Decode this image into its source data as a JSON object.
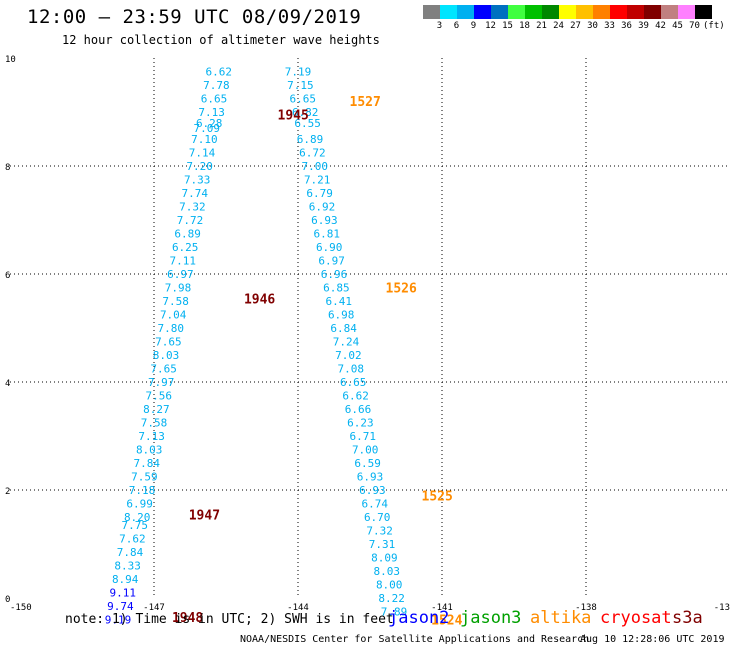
{
  "header": {
    "title": "12:00 – 23:59 UTC 08/09/2019",
    "subtitle": "12 hour collection of altimeter wave heights"
  },
  "legend": {
    "unit": "(ft)",
    "labels": [
      "3",
      "6",
      "9",
      "12",
      "15",
      "18",
      "21",
      "24",
      "27",
      "30",
      "33",
      "36",
      "39",
      "42",
      "45",
      "70"
    ],
    "colors": [
      "#808080",
      "#00e5ff",
      "#00b0f0",
      "#0000ff",
      "#0070c0",
      "#40ff40",
      "#00c000",
      "#008800",
      "#ffff00",
      "#ffc000",
      "#ff8000",
      "#ff0000",
      "#c00000",
      "#800000",
      "#c08080",
      "#ff80ff",
      "#000000"
    ]
  },
  "axes": {
    "x_ticks": [
      "-150",
      "-147",
      "-144",
      "-141",
      "-138",
      "-13"
    ],
    "y_ticks": [
      "10",
      "8",
      "6",
      "4",
      "2",
      "0"
    ]
  },
  "chart_data": {
    "type": "scatter",
    "xlim": [
      -150,
      -135
    ],
    "ylim": [
      0,
      10
    ],
    "grid": true,
    "tracks": [
      {
        "track": "A",
        "points": [
          {
            "x": -145.65,
            "y": 9.75,
            "v": "6.62",
            "color": "#00b0f0"
          },
          {
            "x": -145.7,
            "y": 9.5,
            "v": "7.78",
            "color": "#00b0f0"
          },
          {
            "x": -145.75,
            "y": 9.25,
            "v": "6.65",
            "color": "#00b0f0"
          },
          {
            "x": -145.8,
            "y": 9.0,
            "v": "7.13",
            "color": "#00b0f0"
          },
          {
            "x": -145.85,
            "y": 8.8,
            "v": "6.28",
            "color": "#00b0f0"
          },
          {
            "x": -145.9,
            "y": 8.7,
            "v": "7.09",
            "color": "#00b0f0"
          },
          {
            "x": -145.95,
            "y": 8.5,
            "v": "7.10",
            "color": "#00b0f0"
          },
          {
            "x": -146.0,
            "y": 8.25,
            "v": "7.14",
            "color": "#00b0f0"
          },
          {
            "x": -146.05,
            "y": 8.0,
            "v": "7.20",
            "color": "#00b0f0"
          },
          {
            "x": -146.1,
            "y": 7.75,
            "v": "7.33",
            "color": "#00b0f0"
          },
          {
            "x": -146.15,
            "y": 7.5,
            "v": "7.74",
            "color": "#00b0f0"
          },
          {
            "x": -146.2,
            "y": 7.25,
            "v": "7.32",
            "color": "#00b0f0"
          },
          {
            "x": -146.25,
            "y": 7.0,
            "v": "7.72",
            "color": "#00b0f0"
          },
          {
            "x": -146.3,
            "y": 6.75,
            "v": "6.89",
            "color": "#00b0f0"
          },
          {
            "x": -146.35,
            "y": 6.5,
            "v": "6.25",
            "color": "#00b0f0"
          },
          {
            "x": -146.4,
            "y": 6.25,
            "v": "7.11",
            "color": "#00b0f0"
          },
          {
            "x": -146.45,
            "y": 6.0,
            "v": "6.97",
            "color": "#00b0f0"
          },
          {
            "x": -146.5,
            "y": 5.75,
            "v": "7.98",
            "color": "#00b0f0"
          },
          {
            "x": -146.55,
            "y": 5.5,
            "v": "7.58",
            "color": "#00b0f0"
          },
          {
            "x": -146.6,
            "y": 5.25,
            "v": "7.04",
            "color": "#00b0f0"
          },
          {
            "x": -146.65,
            "y": 5.0,
            "v": "7.80",
            "color": "#00b0f0"
          },
          {
            "x": -146.7,
            "y": 4.75,
            "v": "7.65",
            "color": "#00b0f0"
          },
          {
            "x": -146.75,
            "y": 4.5,
            "v": "8.03",
            "color": "#00b0f0"
          },
          {
            "x": -146.8,
            "y": 4.25,
            "v": "7.65",
            "color": "#00b0f0"
          },
          {
            "x": -146.85,
            "y": 4.0,
            "v": "7.97",
            "color": "#00b0f0"
          },
          {
            "x": -146.9,
            "y": 3.75,
            "v": "7.56",
            "color": "#00b0f0"
          },
          {
            "x": -146.95,
            "y": 3.5,
            "v": "8.27",
            "color": "#00b0f0"
          },
          {
            "x": -147.0,
            "y": 3.25,
            "v": "7.58",
            "color": "#00b0f0"
          },
          {
            "x": -147.05,
            "y": 3.0,
            "v": "7.13",
            "color": "#00b0f0"
          },
          {
            "x": -147.1,
            "y": 2.75,
            "v": "8.03",
            "color": "#00b0f0"
          },
          {
            "x": -147.15,
            "y": 2.5,
            "v": "7.84",
            "color": "#00b0f0"
          },
          {
            "x": -147.2,
            "y": 2.25,
            "v": "7.59",
            "color": "#00b0f0"
          },
          {
            "x": -147.25,
            "y": 2.0,
            "v": "7.18",
            "color": "#00b0f0"
          },
          {
            "x": -147.3,
            "y": 1.75,
            "v": "6.99",
            "color": "#00b0f0"
          },
          {
            "x": -147.35,
            "y": 1.5,
            "v": "8.20",
            "color": "#00b0f0"
          },
          {
            "x": -147.4,
            "y": 1.35,
            "v": "7.75",
            "color": "#00b0f0"
          },
          {
            "x": -147.45,
            "y": 1.1,
            "v": "7.62",
            "color": "#00b0f0"
          },
          {
            "x": -147.5,
            "y": 0.85,
            "v": "7.84",
            "color": "#00b0f0"
          },
          {
            "x": -147.55,
            "y": 0.6,
            "v": "8.33",
            "color": "#00b0f0"
          },
          {
            "x": -147.6,
            "y": 0.35,
            "v": "8.94",
            "color": "#00b0f0"
          },
          {
            "x": -147.65,
            "y": 0.1,
            "v": "9.11",
            "color": "#0000ff"
          },
          {
            "x": -147.7,
            "y": -0.15,
            "v": "9.74",
            "color": "#0000ff"
          },
          {
            "x": -147.75,
            "y": -0.4,
            "v": "9.19",
            "color": "#0000ff"
          }
        ]
      },
      {
        "track": "B",
        "points": [
          {
            "x": -144.0,
            "y": 9.75,
            "v": "7.19",
            "color": "#00b0f0"
          },
          {
            "x": -143.95,
            "y": 9.5,
            "v": "7.15",
            "color": "#00b0f0"
          },
          {
            "x": -143.9,
            "y": 9.25,
            "v": "6.65",
            "color": "#00b0f0"
          },
          {
            "x": -143.85,
            "y": 9.0,
            "v": "6.82",
            "color": "#00b0f0"
          },
          {
            "x": -143.8,
            "y": 8.8,
            "v": "6.55",
            "color": "#00b0f0"
          },
          {
            "x": -143.75,
            "y": 8.5,
            "v": "6.89",
            "color": "#00b0f0"
          },
          {
            "x": -143.7,
            "y": 8.25,
            "v": "6.72",
            "color": "#00b0f0"
          },
          {
            "x": -143.65,
            "y": 8.0,
            "v": "7.00",
            "color": "#00b0f0"
          },
          {
            "x": -143.6,
            "y": 7.75,
            "v": "7.21",
            "color": "#00b0f0"
          },
          {
            "x": -143.55,
            "y": 7.5,
            "v": "6.79",
            "color": "#00b0f0"
          },
          {
            "x": -143.5,
            "y": 7.25,
            "v": "6.92",
            "color": "#00b0f0"
          },
          {
            "x": -143.45,
            "y": 7.0,
            "v": "6.93",
            "color": "#00b0f0"
          },
          {
            "x": -143.4,
            "y": 6.75,
            "v": "6.81",
            "color": "#00b0f0"
          },
          {
            "x": -143.35,
            "y": 6.5,
            "v": "6.90",
            "color": "#00b0f0"
          },
          {
            "x": -143.3,
            "y": 6.25,
            "v": "6.97",
            "color": "#00b0f0"
          },
          {
            "x": -143.25,
            "y": 6.0,
            "v": "6.96",
            "color": "#00b0f0"
          },
          {
            "x": -143.2,
            "y": 5.75,
            "v": "6.85",
            "color": "#00b0f0"
          },
          {
            "x": -143.15,
            "y": 5.5,
            "v": "6.41",
            "color": "#00b0f0"
          },
          {
            "x": -143.1,
            "y": 5.25,
            "v": "6.98",
            "color": "#00b0f0"
          },
          {
            "x": -143.05,
            "y": 5.0,
            "v": "6.84",
            "color": "#00b0f0"
          },
          {
            "x": -143.0,
            "y": 4.75,
            "v": "7.24",
            "color": "#00b0f0"
          },
          {
            "x": -142.95,
            "y": 4.5,
            "v": "7.02",
            "color": "#00b0f0"
          },
          {
            "x": -142.9,
            "y": 4.25,
            "v": "7.08",
            "color": "#00b0f0"
          },
          {
            "x": -142.85,
            "y": 4.0,
            "v": "6.65",
            "color": "#00b0f0"
          },
          {
            "x": -142.8,
            "y": 3.75,
            "v": "6.62",
            "color": "#00b0f0"
          },
          {
            "x": -142.75,
            "y": 3.5,
            "v": "6.66",
            "color": "#00b0f0"
          },
          {
            "x": -142.7,
            "y": 3.25,
            "v": "6.23",
            "color": "#00b0f0"
          },
          {
            "x": -142.65,
            "y": 3.0,
            "v": "6.71",
            "color": "#00b0f0"
          },
          {
            "x": -142.6,
            "y": 2.75,
            "v": "7.00",
            "color": "#00b0f0"
          },
          {
            "x": -142.55,
            "y": 2.5,
            "v": "6.59",
            "color": "#00b0f0"
          },
          {
            "x": -142.5,
            "y": 2.25,
            "v": "6.93",
            "color": "#00b0f0"
          },
          {
            "x": -142.45,
            "y": 2.0,
            "v": "6.93",
            "color": "#00b0f0"
          },
          {
            "x": -142.4,
            "y": 1.75,
            "v": "6.74",
            "color": "#00b0f0"
          },
          {
            "x": -142.35,
            "y": 1.5,
            "v": "6.70",
            "color": "#00b0f0"
          },
          {
            "x": -142.3,
            "y": 1.25,
            "v": "7.32",
            "color": "#00b0f0"
          },
          {
            "x": -142.25,
            "y": 1.0,
            "v": "7.31",
            "color": "#00b0f0"
          },
          {
            "x": -142.2,
            "y": 0.75,
            "v": "8.09",
            "color": "#00b0f0"
          },
          {
            "x": -142.15,
            "y": 0.5,
            "v": "8.03",
            "color": "#00b0f0"
          },
          {
            "x": -142.1,
            "y": 0.25,
            "v": "8.00",
            "color": "#00b0f0"
          },
          {
            "x": -142.05,
            "y": 0.0,
            "v": "8.22",
            "color": "#00b0f0"
          },
          {
            "x": -142.0,
            "y": -0.25,
            "v": "7.89",
            "color": "#00b0f0"
          }
        ]
      }
    ],
    "time_labels": [
      {
        "x": -144.1,
        "y": 8.95,
        "text": "1945",
        "color": "#800000"
      },
      {
        "x": -144.8,
        "y": 5.55,
        "text": "1946",
        "color": "#800000"
      },
      {
        "x": -145.95,
        "y": 1.55,
        "text": "1947",
        "color": "#800000"
      },
      {
        "x": -146.3,
        "y": -0.35,
        "text": "1948",
        "color": "#800000"
      },
      {
        "x": -142.6,
        "y": 9.2,
        "text": "1527",
        "color": "#ff8c00"
      },
      {
        "x": -141.85,
        "y": 5.75,
        "text": "1526",
        "color": "#ff8c00"
      },
      {
        "x": -141.1,
        "y": 1.9,
        "text": "1525",
        "color": "#ff8c00"
      },
      {
        "x": -140.9,
        "y": -0.4,
        "text": "1524",
        "color": "#ff8c00"
      }
    ]
  },
  "footer": {
    "note": "note: 1) Time is in UTC; 2) SWH is in feet",
    "satellites": [
      {
        "name": "jason2",
        "color": "#0000ff"
      },
      {
        "name": "jason3",
        "color": "#00a000"
      },
      {
        "name": "altika",
        "color": "#ff8c00"
      },
      {
        "name": "cryosat",
        "color": "#ff0000"
      },
      {
        "name": "s3a",
        "color": "#800000"
      }
    ],
    "credit": "NOAA/NESDIS Center for Satellite Applications and Research",
    "date": "Aug 10 12:28:06 UTC 2019"
  }
}
